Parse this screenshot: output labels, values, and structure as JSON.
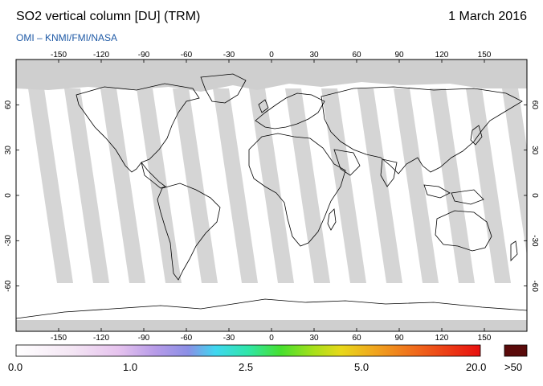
{
  "header": {
    "title": "SO2 vertical column [DU] (TRM)",
    "date": "1 March 2016",
    "credit": "OMI  –  KNMI/FMI/NASA"
  },
  "map": {
    "lon_ticks": [
      "-150",
      "-120",
      "-90",
      "-60",
      "-30",
      "0",
      "30",
      "60",
      "90",
      "120",
      "150"
    ],
    "lat_ticks": [
      "60",
      "30",
      "0",
      "-30",
      "-60"
    ],
    "colors": {
      "ocean": "#ffffff",
      "swath_gap": "#d3d3d3",
      "swath_overlap": "#a9a9a9",
      "polar_no_data": "#cfcfcf",
      "coastline": "#000000"
    }
  },
  "colorbar": {
    "labels": [
      "0.0",
      "1.0",
      "2.5",
      "5.0",
      "20.0",
      ">50"
    ],
    "overflow_color": "#5a0a0a"
  }
}
